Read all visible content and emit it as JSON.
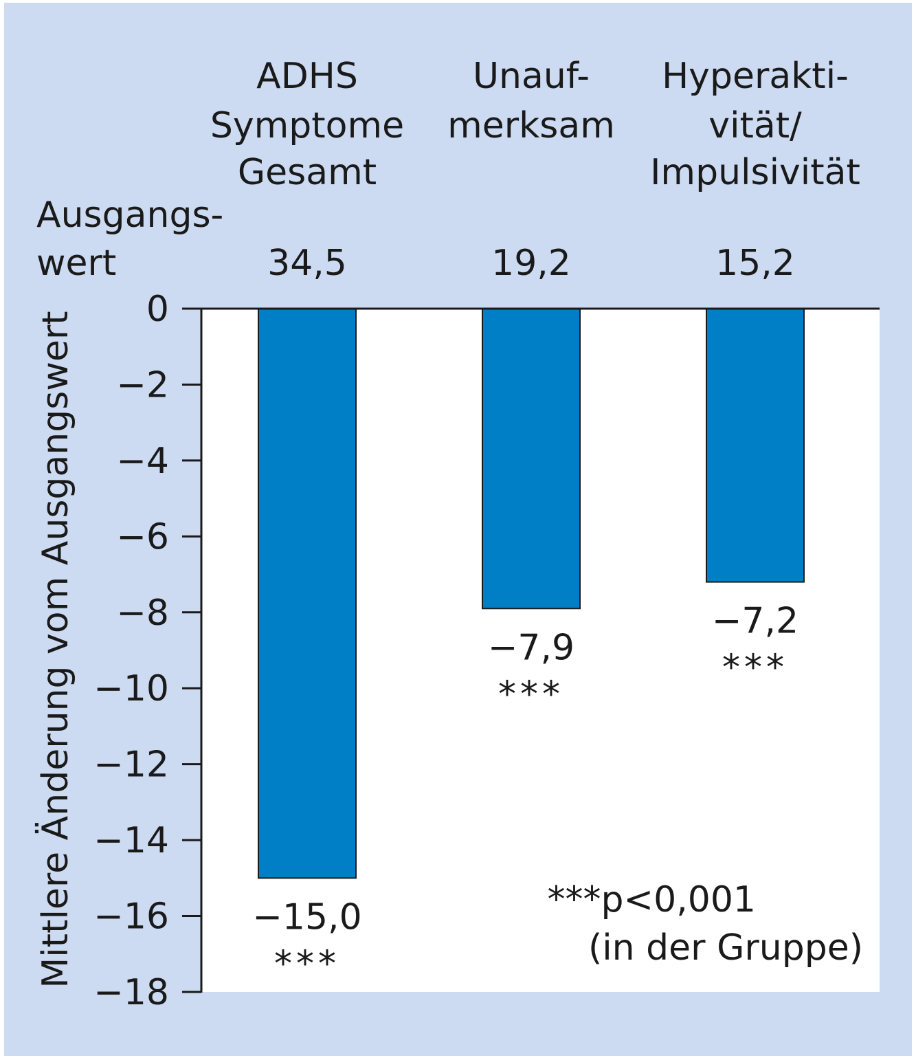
{
  "chart_data": {
    "type": "bar",
    "categories": [
      [
        "ADHS",
        "Symptome",
        "Gesamt"
      ],
      [
        "Unauf-",
        "merksam"
      ],
      [
        "Hyperakti-",
        "vität/",
        "Impulsivität"
      ]
    ],
    "baseline_label": [
      "Ausgangs-",
      "wert"
    ],
    "baseline_values": [
      "34,5",
      "19,2",
      "15,2"
    ],
    "values": [
      -15.0,
      -7.9,
      -7.2
    ],
    "value_labels": [
      "−15,0",
      "−7,9",
      "−7,2"
    ],
    "significance": [
      "***",
      "***",
      "***"
    ],
    "ylabel": "Mittlere Änderung vom Ausgangswert",
    "ylim": [
      -18,
      0
    ],
    "yticks": [
      0,
      -2,
      -4,
      -6,
      -8,
      -10,
      -12,
      -14,
      -16,
      -18
    ],
    "ytick_labels": [
      "0",
      "−2",
      "−4",
      "−6",
      "−8",
      "−10",
      "−12",
      "−14",
      "−16",
      "−18"
    ],
    "footnote": [
      "***p<0,001",
      "(in der Gruppe)"
    ],
    "colors": {
      "bar": "#007ec6",
      "plot_bg": "#ffffff",
      "frame_bg": "#cddbf2",
      "axis": "#1a1a1a"
    }
  }
}
